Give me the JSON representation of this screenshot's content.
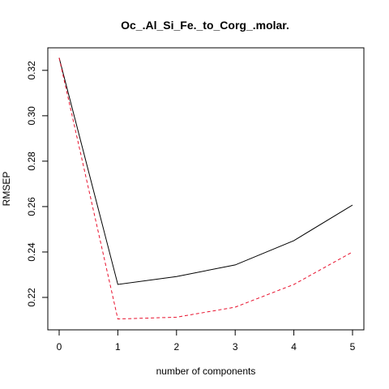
{
  "chart_data": {
    "type": "line",
    "title": "Oc_.Al_Si_Fe._to_Corg_.molar.",
    "xlabel": "number of components",
    "ylabel": "RMSEP",
    "x": [
      0,
      1,
      2,
      3,
      4,
      5
    ],
    "xlim": [
      0,
      5
    ],
    "ylim": [
      0.21,
      0.326
    ],
    "x_ticks": [
      "0",
      "1",
      "2",
      "3",
      "4",
      "5"
    ],
    "y_ticks": [
      "0.22",
      "0.24",
      "0.26",
      "0.28",
      "0.30",
      "0.32"
    ],
    "series": [
      {
        "values": [
          0.3255,
          0.2257,
          0.2292,
          0.2343,
          0.245,
          0.2607
        ],
        "color": "#000000",
        "line_style": "solid"
      },
      {
        "values": [
          0.3255,
          0.2105,
          0.2113,
          0.2157,
          0.2257,
          0.24
        ],
        "color": "#e8112d",
        "line_style": "dashed"
      }
    ],
    "grid": false,
    "legend": "none"
  }
}
